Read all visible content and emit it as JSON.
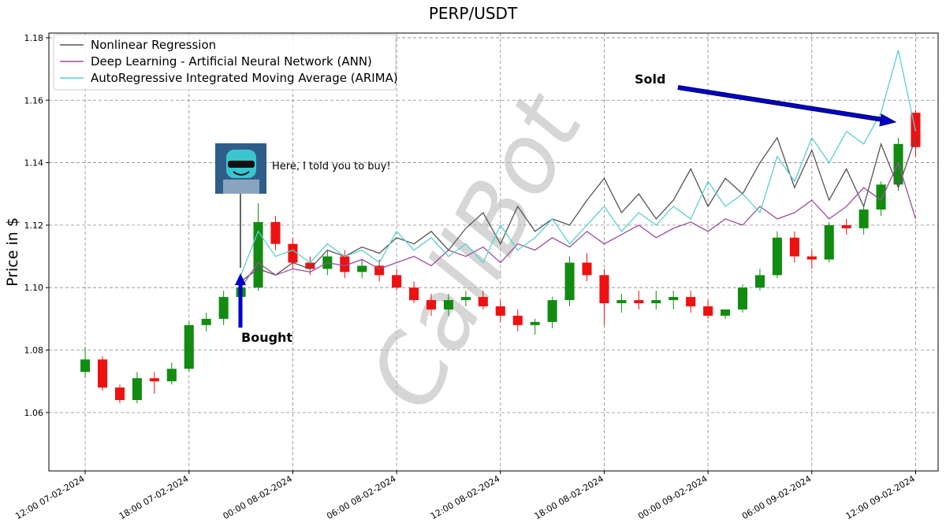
{
  "chart_data": {
    "type": "candlestick",
    "title": "PERP/USDT",
    "ylabel": "Price in $",
    "x": [
      "12:00 07-02-2024",
      "13:00 07-02-2024",
      "14:00 07-02-2024",
      "15:00 07-02-2024",
      "16:00 07-02-2024",
      "17:00 07-02-2024",
      "18:00 07-02-2024",
      "19:00 07-02-2024",
      "20:00 07-02-2024",
      "21:00 07-02-2024",
      "22:00 07-02-2024",
      "23:00 07-02-2024",
      "00:00 08-02-2024",
      "01:00 08-02-2024",
      "02:00 08-02-2024",
      "03:00 08-02-2024",
      "04:00 08-02-2024",
      "05:00 08-02-2024",
      "06:00 08-02-2024",
      "07:00 08-02-2024",
      "08:00 08-02-2024",
      "09:00 08-02-2024",
      "10:00 08-02-2024",
      "11:00 08-02-2024",
      "12:00 08-02-2024",
      "13:00 08-02-2024",
      "14:00 08-02-2024",
      "15:00 08-02-2024",
      "16:00 08-02-2024",
      "17:00 08-02-2024",
      "18:00 08-02-2024",
      "19:00 08-02-2024",
      "20:00 08-02-2024",
      "21:00 08-02-2024",
      "22:00 08-02-2024",
      "23:00 08-02-2024",
      "00:00 09-02-2024",
      "01:00 09-02-2024",
      "02:00 09-02-2024",
      "03:00 09-02-2024",
      "04:00 09-02-2024",
      "05:00 09-02-2024",
      "06:00 09-02-2024",
      "07:00 09-02-2024",
      "08:00 09-02-2024",
      "09:00 09-02-2024",
      "10:00 09-02-2024",
      "11:00 09-02-2024",
      "12:00 09-02-2024"
    ],
    "candles": {
      "up_color": "#118c11",
      "down_color": "#ee1111",
      "open": [
        1.073,
        1.077,
        1.068,
        1.064,
        1.071,
        1.07,
        1.074,
        1.088,
        1.09,
        1.097,
        1.1,
        1.121,
        1.114,
        1.108,
        1.106,
        1.11,
        1.105,
        1.107,
        1.104,
        1.1,
        1.096,
        1.093,
        1.096,
        1.097,
        1.094,
        1.091,
        1.088,
        1.089,
        1.096,
        1.108,
        1.104,
        1.095,
        1.096,
        1.095,
        1.096,
        1.097,
        1.094,
        1.091,
        1.093,
        1.1,
        1.104,
        1.116,
        1.11,
        1.109,
        1.12,
        1.119,
        1.125,
        1.133,
        1.156
      ],
      "high": [
        1.081,
        1.078,
        1.069,
        1.073,
        1.073,
        1.076,
        1.089,
        1.092,
        1.099,
        1.101,
        1.127,
        1.123,
        1.116,
        1.11,
        1.112,
        1.112,
        1.109,
        1.109,
        1.106,
        1.102,
        1.098,
        1.098,
        1.099,
        1.099,
        1.096,
        1.093,
        1.09,
        1.097,
        1.11,
        1.111,
        1.106,
        1.098,
        1.099,
        1.099,
        1.099,
        1.099,
        1.096,
        1.093,
        1.101,
        1.106,
        1.118,
        1.118,
        1.112,
        1.121,
        1.122,
        1.126,
        1.134,
        1.148,
        1.157
      ],
      "low": [
        1.071,
        1.067,
        1.063,
        1.063,
        1.066,
        1.069,
        1.073,
        1.086,
        1.088,
        1.096,
        1.099,
        1.112,
        1.106,
        1.104,
        1.104,
        1.103,
        1.103,
        1.102,
        1.099,
        1.095,
        1.091,
        1.091,
        1.094,
        1.093,
        1.089,
        1.086,
        1.085,
        1.087,
        1.094,
        1.102,
        1.088,
        1.092,
        1.093,
        1.093,
        1.093,
        1.092,
        1.09,
        1.09,
        1.092,
        1.099,
        1.103,
        1.108,
        1.106,
        1.108,
        1.117,
        1.117,
        1.123,
        1.131,
        1.142
      ],
      "close": [
        1.077,
        1.068,
        1.064,
        1.071,
        1.07,
        1.074,
        1.088,
        1.09,
        1.097,
        1.1,
        1.121,
        1.114,
        1.108,
        1.106,
        1.11,
        1.105,
        1.107,
        1.104,
        1.1,
        1.096,
        1.093,
        1.096,
        1.097,
        1.094,
        1.091,
        1.088,
        1.089,
        1.096,
        1.108,
        1.104,
        1.095,
        1.096,
        1.095,
        1.096,
        1.097,
        1.094,
        1.091,
        1.093,
        1.1,
        1.104,
        1.116,
        1.11,
        1.109,
        1.12,
        1.119,
        1.125,
        1.133,
        1.146,
        1.145
      ]
    },
    "series": [
      {
        "name": "Nonlinear Regression",
        "color": "#555555",
        "values": [
          null,
          null,
          null,
          null,
          null,
          null,
          null,
          null,
          null,
          1.102,
          1.106,
          1.104,
          1.108,
          1.106,
          1.112,
          1.11,
          1.113,
          1.111,
          1.116,
          1.114,
          1.118,
          1.112,
          1.119,
          1.124,
          1.114,
          1.126,
          1.118,
          1.122,
          1.12,
          1.128,
          1.135,
          1.124,
          1.13,
          1.122,
          1.128,
          1.138,
          1.126,
          1.135,
          1.13,
          1.14,
          1.148,
          1.132,
          1.144,
          1.128,
          1.138,
          1.126,
          1.146,
          1.132,
          1.148
        ]
      },
      {
        "name": "Deep Learning - Artificial Neural Network (ANN)",
        "color": "#9b4f9b",
        "values": [
          null,
          null,
          null,
          null,
          null,
          null,
          null,
          null,
          null,
          1.1,
          1.108,
          1.104,
          1.106,
          1.105,
          1.108,
          1.107,
          1.109,
          1.106,
          1.108,
          1.11,
          1.107,
          1.112,
          1.11,
          1.113,
          1.108,
          1.114,
          1.112,
          1.116,
          1.113,
          1.118,
          1.114,
          1.117,
          1.12,
          1.116,
          1.119,
          1.121,
          1.118,
          1.122,
          1.12,
          1.126,
          1.122,
          1.124,
          1.128,
          1.122,
          1.126,
          1.132,
          1.128,
          1.14,
          1.122
        ]
      },
      {
        "name": "AutoRegressive Integrated Moving Average (ARIMA)",
        "color": "#5bcfd0",
        "values": [
          null,
          null,
          null,
          null,
          null,
          null,
          null,
          null,
          null,
          1.104,
          1.118,
          1.11,
          1.112,
          1.108,
          1.114,
          1.11,
          1.112,
          1.108,
          1.118,
          1.112,
          1.116,
          1.11,
          1.114,
          1.108,
          1.12,
          1.112,
          1.116,
          1.122,
          1.114,
          1.12,
          1.126,
          1.118,
          1.124,
          1.12,
          1.126,
          1.122,
          1.134,
          1.126,
          1.13,
          1.124,
          1.142,
          1.134,
          1.148,
          1.14,
          1.15,
          1.146,
          1.156,
          1.176,
          1.15
        ]
      }
    ],
    "xlim": [
      "09:54 07-02-2024",
      "13:18 09-02-2024"
    ],
    "xticks": [
      "12:00 07-02-2024",
      "18:00 07-02-2024",
      "00:00 08-02-2024",
      "06:00 08-02-2024",
      "12:00 08-02-2024",
      "18:00 08-02-2024",
      "00:00 09-02-2024",
      "06:00 09-02-2024",
      "12:00 09-02-2024"
    ],
    "ylim": [
      1.0413,
      1.1815
    ],
    "yticks": [
      1.06,
      1.08,
      {
        "value": 1.1,
        "label": "1.10"
      },
      1.12,
      1.14,
      1.16,
      1.18
    ],
    "grid": true,
    "legend": "upper left",
    "annotations": {
      "bought": "Bought",
      "sold": "Sold",
      "bot_says": "Here, I told you to buy!",
      "watermark": "CallBot"
    }
  }
}
